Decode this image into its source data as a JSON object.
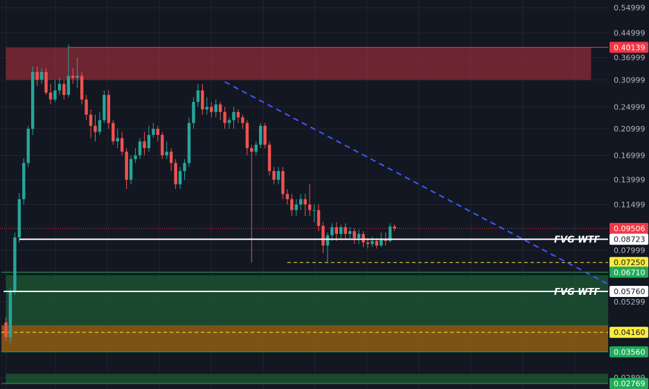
{
  "chart_data": {
    "type": "candlestick",
    "y_scale": "log",
    "ylim": [
      0.0265,
      0.585
    ],
    "grid": true,
    "y_ticks": [
      "0.54999",
      "0.44999",
      "0.36999",
      "0.30999",
      "0.24999",
      "0.20999",
      "0.16999",
      "0.13999",
      "0.11499",
      "0.07999",
      "0.05299",
      "0.04160",
      "0.02899"
    ],
    "price_badges": [
      {
        "label": "0.40139",
        "value": 0.40139,
        "bg": "#f23645",
        "fg": "#ffffff"
      },
      {
        "label": "0.09506",
        "value": 0.09506,
        "bg": "#f23645",
        "fg": "#ffffff"
      },
      {
        "label": "0.08723",
        "value": 0.08723,
        "bg": "#ffffff",
        "fg": "#131722"
      },
      {
        "label": "0.07250",
        "value": 0.0725,
        "bg": "#ffeb3b",
        "fg": "#131722"
      },
      {
        "label": "0.06710",
        "value": 0.0671,
        "bg": "#22ab5b",
        "fg": "#ffffff"
      },
      {
        "label": "0.05760",
        "value": 0.0576,
        "bg": "#ffffff",
        "fg": "#131722"
      },
      {
        "label": "0.04160",
        "value": 0.0416,
        "bg": "#ffeb3b",
        "fg": "#131722"
      },
      {
        "label": "0.03560",
        "value": 0.0356,
        "bg": "#22ab5b",
        "fg": "#ffffff"
      },
      {
        "label": "0.02769",
        "value": 0.02769,
        "bg": "#22ab5b",
        "fg": "#ffffff"
      }
    ],
    "zones": [
      {
        "name": "supply-zone",
        "top": 0.40139,
        "bottom": 0.31,
        "x_start": 0,
        "x_end": 131,
        "color": "#b8323e",
        "opacity": 0.55
      },
      {
        "name": "demand-zone-upper",
        "top": 0.0655,
        "bottom": 0.044,
        "x_start": 0,
        "x_end": 139,
        "color": "#1e5a34",
        "opacity": 0.75
      },
      {
        "name": "demand-zone-orange",
        "top": 0.044,
        "bottom": 0.0356,
        "x_start": -1,
        "x_end": 139,
        "color": "#8a5a14",
        "opacity": 0.9
      },
      {
        "name": "demand-zone-lower",
        "top": 0.0299,
        "bottom": 0.02769,
        "x_start": 0,
        "x_end": 139,
        "color": "#1e5a34",
        "opacity": 0.75
      }
    ],
    "annotations": [
      {
        "text": "FVG WTF",
        "value": 0.08723,
        "x_start": 3,
        "line_end_x": 143
      },
      {
        "text": "FVG WTF",
        "value": 0.0576,
        "x_start": -0.5,
        "line_end_x": 143
      }
    ],
    "trendline": {
      "from": [
        49,
        0.305
      ],
      "to": [
        158,
        0.0395
      ],
      "color": "#3d5afe"
    },
    "dashed_levels": [
      {
        "value": 0.0725,
        "x_start": 63,
        "x_end": 158,
        "color": "#ffeb3b"
      },
      {
        "value": 0.0416,
        "x_start": -1,
        "x_end": 158,
        "color": "#ffeb3b"
      }
    ],
    "solid_levels": [
      {
        "value": 0.40139,
        "x_start": 14,
        "color": "#f23645"
      },
      {
        "value": 0.0671,
        "x_start": -1,
        "color": "#22ab5b"
      },
      {
        "value": 0.0356,
        "x_start": -1,
        "color": "#22ab5b"
      },
      {
        "value": 0.02769,
        "x_start": -1,
        "color": "#22ab5b"
      }
    ],
    "last_price_line": {
      "value": 0.09506,
      "color": "#f23645"
    },
    "candles": [
      [
        0.045,
        0.04,
        0.039,
        0.047
      ],
      [
        0.04,
        0.0575,
        0.038,
        0.059
      ],
      [
        0.0575,
        0.0885,
        0.056,
        0.092
      ],
      [
        0.0885,
        0.12,
        0.085,
        0.126
      ],
      [
        0.12,
        0.16,
        0.115,
        0.166
      ],
      [
        0.16,
        0.21,
        0.155,
        0.215
      ],
      [
        0.21,
        0.33,
        0.2,
        0.345
      ],
      [
        0.33,
        0.31,
        0.295,
        0.345
      ],
      [
        0.31,
        0.33,
        0.3,
        0.34
      ],
      [
        0.33,
        0.28,
        0.275,
        0.34
      ],
      [
        0.28,
        0.265,
        0.255,
        0.3
      ],
      [
        0.265,
        0.285,
        0.26,
        0.31
      ],
      [
        0.285,
        0.3,
        0.275,
        0.315
      ],
      [
        0.3,
        0.275,
        0.265,
        0.31
      ],
      [
        0.275,
        0.32,
        0.27,
        0.41
      ],
      [
        0.32,
        0.315,
        0.3,
        0.34
      ],
      [
        0.315,
        0.32,
        0.29,
        0.37
      ],
      [
        0.32,
        0.265,
        0.255,
        0.33
      ],
      [
        0.265,
        0.235,
        0.225,
        0.275
      ],
      [
        0.235,
        0.215,
        0.195,
        0.245
      ],
      [
        0.215,
        0.205,
        0.19,
        0.235
      ],
      [
        0.205,
        0.225,
        0.2,
        0.24
      ],
      [
        0.225,
        0.275,
        0.22,
        0.285
      ],
      [
        0.275,
        0.22,
        0.21,
        0.285
      ],
      [
        0.22,
        0.19,
        0.185,
        0.225
      ],
      [
        0.19,
        0.195,
        0.18,
        0.21
      ],
      [
        0.195,
        0.175,
        0.17,
        0.205
      ],
      [
        0.175,
        0.14,
        0.13,
        0.18
      ],
      [
        0.14,
        0.165,
        0.135,
        0.17
      ],
      [
        0.165,
        0.17,
        0.16,
        0.18
      ],
      [
        0.17,
        0.19,
        0.165,
        0.195
      ],
      [
        0.19,
        0.18,
        0.17,
        0.205
      ],
      [
        0.18,
        0.2,
        0.175,
        0.215
      ],
      [
        0.2,
        0.21,
        0.195,
        0.22
      ],
      [
        0.21,
        0.2,
        0.19,
        0.215
      ],
      [
        0.2,
        0.17,
        0.165,
        0.205
      ],
      [
        0.17,
        0.175,
        0.165,
        0.19
      ],
      [
        0.175,
        0.16,
        0.15,
        0.18
      ],
      [
        0.16,
        0.135,
        0.13,
        0.165
      ],
      [
        0.135,
        0.15,
        0.13,
        0.155
      ],
      [
        0.15,
        0.16,
        0.14,
        0.165
      ],
      [
        0.16,
        0.22,
        0.155,
        0.23
      ],
      [
        0.22,
        0.26,
        0.21,
        0.27
      ],
      [
        0.26,
        0.285,
        0.25,
        0.3
      ],
      [
        0.285,
        0.245,
        0.235,
        0.3
      ],
      [
        0.245,
        0.25,
        0.235,
        0.27
      ],
      [
        0.25,
        0.24,
        0.23,
        0.26
      ],
      [
        0.24,
        0.255,
        0.23,
        0.265
      ],
      [
        0.255,
        0.24,
        0.225,
        0.26
      ],
      [
        0.24,
        0.22,
        0.21,
        0.25
      ],
      [
        0.22,
        0.225,
        0.21,
        0.23
      ],
      [
        0.225,
        0.24,
        0.21,
        0.25
      ],
      [
        0.24,
        0.23,
        0.22,
        0.245
      ],
      [
        0.23,
        0.22,
        0.21,
        0.235
      ],
      [
        0.22,
        0.18,
        0.17,
        0.225
      ],
      [
        0.18,
        0.175,
        0.0725,
        0.185
      ],
      [
        0.175,
        0.185,
        0.17,
        0.19
      ],
      [
        0.185,
        0.215,
        0.18,
        0.22
      ],
      [
        0.215,
        0.185,
        0.18,
        0.22
      ],
      [
        0.185,
        0.15,
        0.145,
        0.19
      ],
      [
        0.15,
        0.14,
        0.135,
        0.155
      ],
      [
        0.14,
        0.15,
        0.135,
        0.155
      ],
      [
        0.15,
        0.125,
        0.12,
        0.155
      ],
      [
        0.125,
        0.12,
        0.115,
        0.13
      ],
      [
        0.12,
        0.11,
        0.105,
        0.125
      ],
      [
        0.11,
        0.115,
        0.105,
        0.12
      ],
      [
        0.115,
        0.12,
        0.11,
        0.125
      ],
      [
        0.12,
        0.115,
        0.105,
        0.125
      ],
      [
        0.115,
        0.11,
        0.105,
        0.135
      ],
      [
        0.11,
        0.11,
        0.1,
        0.115
      ],
      [
        0.11,
        0.097,
        0.093,
        0.115
      ],
      [
        0.097,
        0.083,
        0.078,
        0.1
      ],
      [
        0.083,
        0.09,
        0.072,
        0.092
      ],
      [
        0.09,
        0.096,
        0.086,
        0.099
      ],
      [
        0.096,
        0.091,
        0.086,
        0.1
      ],
      [
        0.091,
        0.096,
        0.087,
        0.098
      ],
      [
        0.096,
        0.091,
        0.087,
        0.099
      ],
      [
        0.091,
        0.093,
        0.087,
        0.096
      ],
      [
        0.093,
        0.088,
        0.084,
        0.095
      ],
      [
        0.088,
        0.091,
        0.084,
        0.094
      ],
      [
        0.091,
        0.085,
        0.082,
        0.093
      ],
      [
        0.085,
        0.084,
        0.081,
        0.088
      ],
      [
        0.084,
        0.086,
        0.082,
        0.089
      ],
      [
        0.086,
        0.083,
        0.081,
        0.088
      ],
      [
        0.083,
        0.087,
        0.082,
        0.092
      ],
      [
        0.087,
        0.086,
        0.083,
        0.092
      ],
      [
        0.086,
        0.0965,
        0.085,
        0.099
      ],
      [
        0.0965,
        0.09506,
        0.093,
        0.098
      ]
    ]
  }
}
